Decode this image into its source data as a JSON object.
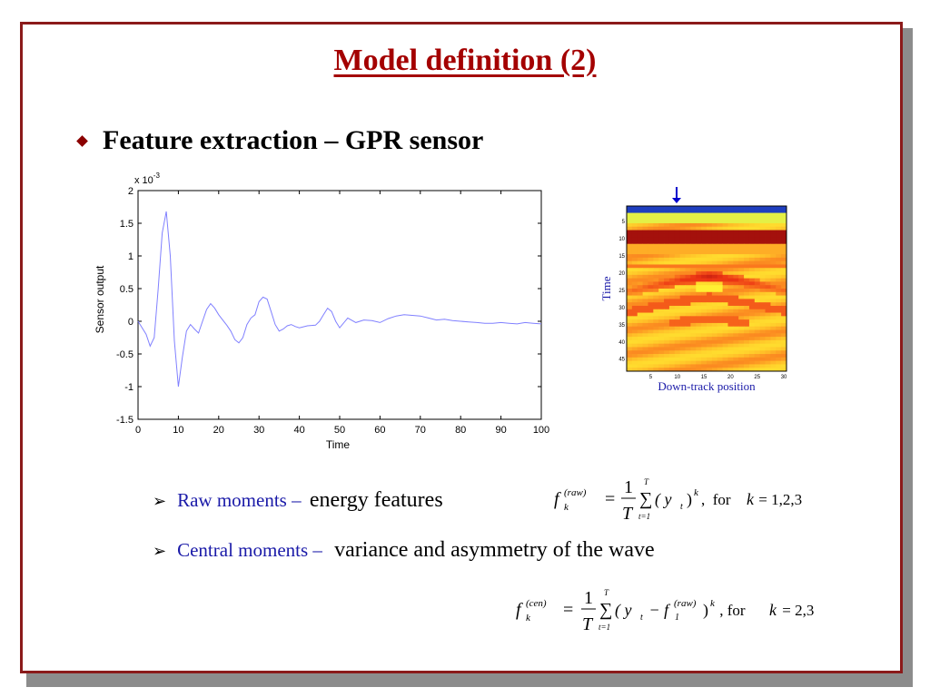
{
  "title": "Model definition (2)",
  "bullet": "Feature extraction – GPR sensor",
  "raw": {
    "label": "Raw moments",
    "sep": " – ",
    "desc": "energy features"
  },
  "central": {
    "label": "Central moments – ",
    "desc": "variance and asymmetry of the wave"
  },
  "formula1": {
    "lhs": "f",
    "lhs_sup": "(raw)",
    "lhs_sub": "k",
    "frac_num": "1",
    "frac_den": "T",
    "sum_top": "T",
    "sum_bot": "t=1",
    "body": "( y",
    "body_sub": "t",
    "body_close": ")",
    "power": "k",
    "cond": ",  for ",
    "cond_var": "k",
    "cond_vals": " = 1,2,3"
  },
  "formula2": {
    "lhs": "f",
    "lhs_sup": "(cen)",
    "lhs_sub": "k",
    "frac_num": "1",
    "frac_den": "T",
    "sum_top": "T",
    "sum_bot": "t=1",
    "body": "( y",
    "body_sub": "t",
    "minus": " − f",
    "f1_sub": "1",
    "f1_sup": "(raw)",
    "body_close": ")",
    "power": "k",
    "cond": " , for ",
    "cond_var": "k",
    "cond_vals": " = 2,3"
  },
  "chart_data": {
    "type": "line",
    "title": "",
    "xlabel": "Time",
    "ylabel": "Sensor output",
    "exponent_label": "x 10",
    "exponent_sup": "-3",
    "xlim": [
      0,
      100
    ],
    "ylim": [
      -1.5,
      2
    ],
    "xticks": [
      "0",
      "10",
      "20",
      "30",
      "40",
      "50",
      "60",
      "70",
      "80",
      "90",
      "100"
    ],
    "yticks": [
      "2",
      "1.5",
      "1",
      "0.5",
      "0",
      "-0.5",
      "-1",
      "-1.5"
    ],
    "line_color": "#8080ff",
    "series": [
      {
        "x": [
          0,
          2,
          3,
          4,
          5,
          6,
          7,
          8,
          9,
          10,
          11,
          12,
          13,
          14,
          15,
          16,
          17,
          18,
          19,
          20,
          21,
          22,
          23,
          24,
          25,
          26,
          27,
          28,
          29,
          30,
          31,
          32,
          33,
          34,
          35,
          36,
          37,
          38,
          39,
          40,
          42,
          44,
          45,
          46,
          47,
          48,
          49,
          50,
          52,
          54,
          56,
          58,
          60,
          62,
          64,
          66,
          68,
          70,
          72,
          74,
          76,
          78,
          80,
          82,
          84,
          86,
          88,
          90,
          92,
          94,
          96,
          98,
          100
        ],
        "y": [
          0,
          -0.2,
          -0.38,
          -0.25,
          0.5,
          1.35,
          1.68,
          1.0,
          -0.3,
          -1.0,
          -0.55,
          -0.15,
          -0.05,
          -0.12,
          -0.18,
          0.0,
          0.18,
          0.27,
          0.2,
          0.1,
          0.02,
          -0.06,
          -0.15,
          -0.28,
          -0.33,
          -0.25,
          -0.05,
          0.05,
          0.1,
          0.3,
          0.37,
          0.34,
          0.15,
          -0.05,
          -0.15,
          -0.12,
          -0.07,
          -0.05,
          -0.08,
          -0.1,
          -0.07,
          -0.06,
          0.0,
          0.1,
          0.2,
          0.15,
          0.0,
          -0.1,
          0.05,
          -0.02,
          0.02,
          0.01,
          -0.02,
          0.04,
          0.08,
          0.1,
          0.09,
          0.08,
          0.05,
          0.02,
          0.03,
          0.01,
          0.0,
          -0.01,
          -0.02,
          -0.03,
          -0.03,
          -0.02,
          -0.03,
          -0.04,
          -0.02,
          -0.03,
          -0.04
        ]
      }
    ]
  },
  "gpr": {
    "ylabel": "Time",
    "xlabel": "Down-track position",
    "xticks": [
      "5",
      "10",
      "15",
      "20",
      "25",
      "30"
    ],
    "yticks": [
      "5",
      "10",
      "15",
      "20",
      "25",
      "30",
      "35",
      "40",
      "45"
    ],
    "marker_color": "#0000cc"
  }
}
